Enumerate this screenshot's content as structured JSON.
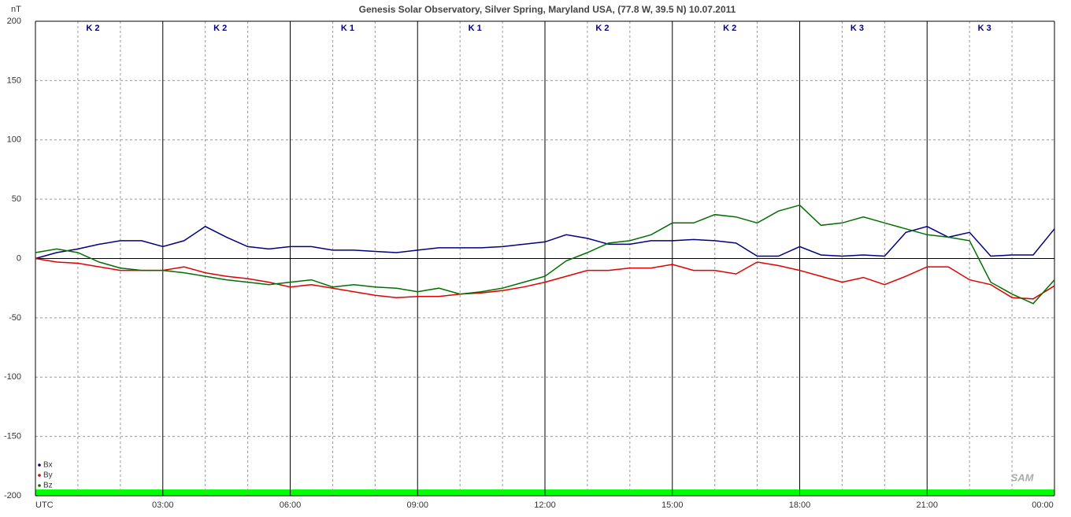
{
  "chart_data": {
    "type": "line",
    "title": "Genesis Solar Observatory, Silver Spring, Maryland USA, (77.8 W, 39.5 N)  10.07.2011",
    "y_label": "nT",
    "logo": "SAM",
    "k_index": [
      "K 2",
      "K 2",
      "K 1",
      "K 1",
      "K 2",
      "K 2",
      "K 3",
      "K 3"
    ],
    "x": [
      0,
      0.5,
      1,
      1.5,
      2,
      2.5,
      3,
      3.5,
      4,
      4.5,
      5,
      5.5,
      6,
      6.5,
      7,
      7.5,
      8,
      8.5,
      9,
      9.5,
      10,
      10.5,
      11,
      11.5,
      12,
      12.5,
      13,
      13.5,
      14,
      14.5,
      15,
      15.5,
      16,
      16.5,
      17,
      17.5,
      18,
      18.5,
      19,
      19.5,
      20,
      20.5,
      21,
      21.5,
      22,
      22.5,
      23,
      23.5,
      24
    ],
    "series": [
      {
        "name": "Bx",
        "color": "#000080",
        "values": [
          0,
          5,
          8,
          12,
          15,
          15,
          10,
          15,
          27,
          18,
          10,
          8,
          10,
          10,
          7,
          7,
          6,
          5,
          7,
          9,
          9,
          9,
          10,
          12,
          14,
          20,
          17,
          12,
          12,
          15,
          15,
          16,
          15,
          13,
          2,
          2,
          10,
          3,
          2,
          3,
          2,
          22,
          27,
          18,
          22,
          2,
          3,
          3,
          25
        ]
      },
      {
        "name": "By",
        "color": "#e00000",
        "values": [
          0,
          -3,
          -4,
          -7,
          -10,
          -10,
          -10,
          -7,
          -12,
          -15,
          -17,
          -20,
          -24,
          -22,
          -25,
          -28,
          -31,
          -33,
          -32,
          -32,
          -30,
          -29,
          -27,
          -24,
          -20,
          -15,
          -10,
          -10,
          -8,
          -8,
          -5,
          -10,
          -10,
          -13,
          -3,
          -6,
          -10,
          -15,
          -20,
          -16,
          -22,
          -15,
          -7,
          -7,
          -18,
          -22,
          -33,
          -34,
          -23
        ]
      },
      {
        "name": "Bz",
        "color": "#007000",
        "values": [
          5,
          8,
          5,
          -3,
          -8,
          -10,
          -10,
          -12,
          -15,
          -18,
          -20,
          -22,
          -20,
          -18,
          -24,
          -22,
          -24,
          -25,
          -28,
          -25,
          -30,
          -28,
          -25,
          -20,
          -15,
          -2,
          5,
          13,
          15,
          20,
          30,
          30,
          37,
          35,
          30,
          40,
          45,
          28,
          30,
          35,
          30,
          25,
          20,
          18,
          15,
          -20,
          -30,
          -38,
          -18
        ]
      }
    ],
    "xlim": [
      0,
      24
    ],
    "xticks": [
      {
        "value": 0,
        "label": "UTC"
      },
      {
        "value": 3,
        "label": "03:00"
      },
      {
        "value": 6,
        "label": "06:00"
      },
      {
        "value": 9,
        "label": "09:00"
      },
      {
        "value": 12,
        "label": "12:00"
      },
      {
        "value": 15,
        "label": "15:00"
      },
      {
        "value": 18,
        "label": "18:00"
      },
      {
        "value": 21,
        "label": "21:00"
      },
      {
        "value": 24,
        "label": "00:00"
      }
    ],
    "xminorticks": [
      1,
      2,
      4,
      5,
      7,
      8,
      10,
      11,
      13,
      14,
      16,
      17,
      19,
      20,
      22,
      23
    ],
    "ylim": [
      -200,
      200
    ],
    "yticks": [
      -200,
      -150,
      -100,
      -50,
      0,
      50,
      100,
      150,
      200
    ],
    "grid": true,
    "legend": "bottom-left"
  }
}
